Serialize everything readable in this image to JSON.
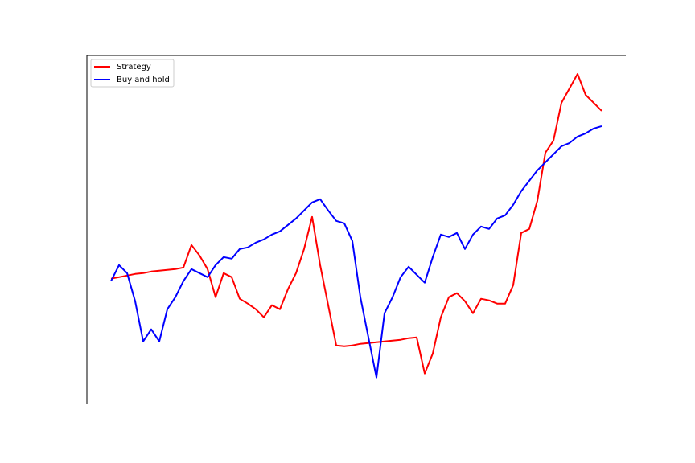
{
  "chart_data": {
    "type": "line",
    "ylim": [
      63,
      507
    ],
    "legend": "upper left",
    "series": [
      {
        "name": "Strategy",
        "color": "#ff0000",
        "values": [
          229,
          231,
          233,
          235,
          236,
          238,
          239,
          240,
          241,
          243,
          271,
          258,
          241,
          206,
          236,
          231,
          204,
          198,
          191,
          181,
          196,
          191,
          216,
          236,
          266,
          306,
          246,
          196,
          146,
          145,
          146,
          148,
          149,
          150,
          151,
          152,
          153,
          155,
          156,
          111,
          136,
          181,
          206,
          211,
          201,
          186,
          204,
          202,
          198,
          198,
          221,
          286,
          291,
          326,
          386,
          401,
          448,
          466,
          484,
          458,
          448,
          438
        ]
      },
      {
        "name": "Buy and hold",
        "color": "#0000ff",
        "values": [
          226,
          246,
          236,
          201,
          151,
          166,
          151,
          191,
          206,
          226,
          241,
          236,
          231,
          246,
          256,
          254,
          266,
          268,
          274,
          278,
          284,
          288,
          296,
          304,
          314,
          324,
          328,
          314,
          301,
          298,
          276,
          206,
          156,
          106,
          186,
          206,
          231,
          244,
          234,
          224,
          256,
          284,
          281,
          286,
          266,
          284,
          294,
          291,
          304,
          308,
          321,
          338,
          351,
          364,
          374,
          384,
          394,
          398,
          406,
          410,
          416,
          419
        ]
      }
    ]
  }
}
